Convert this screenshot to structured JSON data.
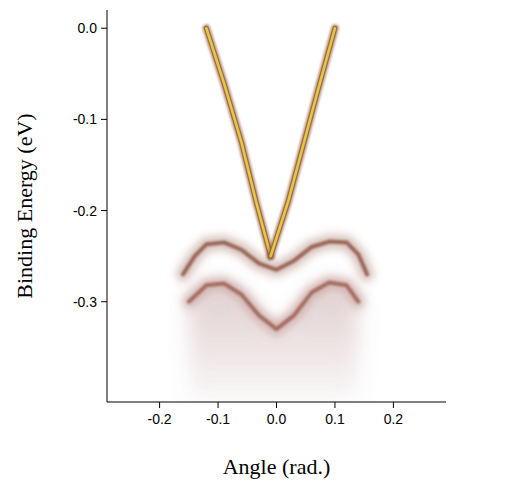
{
  "chart_data": {
    "type": "line",
    "x_label": "Angle (rad.)",
    "y_label": "Binding Energy (eV)",
    "xlim": [
      -0.29,
      0.29
    ],
    "ylim": [
      -0.41,
      0.02
    ],
    "xticks": [
      {
        "value": -0.2,
        "label": "-0.2"
      },
      {
        "value": -0.1,
        "label": "-0.1"
      },
      {
        "value": 0,
        "label": "0.0"
      },
      {
        "value": 0.1,
        "label": "0.1"
      },
      {
        "value": 0.2,
        "label": "0.2"
      }
    ],
    "yticks": [
      {
        "value": 0,
        "label": "0.0"
      },
      {
        "value": -0.1,
        "label": "-0.1"
      },
      {
        "value": -0.2,
        "label": "-0.2"
      },
      {
        "value": -0.3,
        "label": "-0.3"
      }
    ],
    "grid": false,
    "series": [
      {
        "type": "line",
        "color": "#e2c84a",
        "line_style": "solid",
        "x": [
          -0.12,
          -0.09,
          -0.06,
          -0.035,
          -0.01
        ],
        "values": [
          0.0,
          -0.06,
          -0.125,
          -0.19,
          -0.25
        ]
      },
      {
        "type": "line",
        "color": "#e2c84a",
        "line_style": "solid",
        "x": [
          -0.01,
          0.02,
          0.045,
          0.07,
          0.1
        ],
        "values": [
          -0.25,
          -0.19,
          -0.13,
          -0.07,
          0.0
        ]
      },
      {
        "type": "line",
        "color": "#8c5040",
        "line_style": "solid",
        "x": [
          -0.16,
          -0.14,
          -0.12,
          -0.09,
          -0.06,
          -0.03,
          0.0,
          0.03,
          0.06,
          0.09,
          0.12,
          0.14,
          0.155
        ],
        "values": [
          -0.27,
          -0.25,
          -0.237,
          -0.235,
          -0.243,
          -0.258,
          -0.265,
          -0.255,
          -0.24,
          -0.234,
          -0.235,
          -0.248,
          -0.27
        ]
      },
      {
        "type": "line",
        "color": "#9a5a4c",
        "line_style": "solid",
        "x": [
          -0.15,
          -0.12,
          -0.09,
          -0.06,
          -0.03,
          0.0,
          0.03,
          0.06,
          0.09,
          0.12,
          0.14
        ],
        "values": [
          -0.3,
          -0.282,
          -0.28,
          -0.292,
          -0.315,
          -0.33,
          -0.315,
          -0.29,
          -0.279,
          -0.282,
          -0.3
        ]
      }
    ]
  }
}
